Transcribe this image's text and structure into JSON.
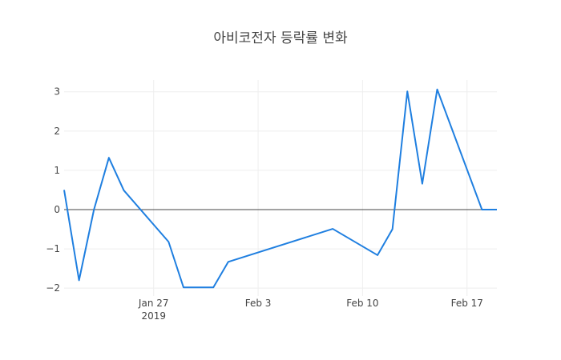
{
  "chart_data": {
    "type": "line",
    "title": "아비코전자 등락률 변화",
    "xlabel": "",
    "ylabel": "",
    "x": [
      "2019-01-21",
      "2019-01-22",
      "2019-01-23",
      "2019-01-24",
      "2019-01-25",
      "2019-01-28",
      "2019-01-29",
      "2019-01-30",
      "2019-01-31",
      "2019-02-01",
      "2019-02-08",
      "2019-02-11",
      "2019-02-12",
      "2019-02-13",
      "2019-02-14",
      "2019-02-15",
      "2019-02-18",
      "2019-02-19"
    ],
    "series": [
      {
        "values": [
          0.5,
          -1.8,
          0.0,
          1.32,
          0.49,
          -0.82,
          -1.98,
          -1.98,
          -1.98,
          -1.33,
          -0.49,
          -1.16,
          -0.5,
          3.01,
          0.66,
          3.06,
          0.0,
          0.0
        ],
        "color": "#1f7fe0"
      }
    ],
    "xlim": [
      "2019-01-21",
      "2019-02-19"
    ],
    "ylim": [
      -2.2,
      3.3
    ],
    "xticks": [
      {
        "date": "2019-01-27",
        "label": "Jan 27",
        "sublabel": "2019"
      },
      {
        "date": "2019-02-03",
        "label": "Feb 3",
        "sublabel": ""
      },
      {
        "date": "2019-02-10",
        "label": "Feb 10",
        "sublabel": ""
      },
      {
        "date": "2019-02-17",
        "label": "Feb 17",
        "sublabel": ""
      }
    ],
    "yticks": [
      {
        "value": 3,
        "label": "3"
      },
      {
        "value": 2,
        "label": "2"
      },
      {
        "value": 1,
        "label": "1"
      },
      {
        "value": 0,
        "label": "0"
      },
      {
        "value": -1,
        "label": "−1"
      },
      {
        "value": -2,
        "label": "−2"
      }
    ],
    "grid": true,
    "zero_line": true,
    "legend": "none"
  }
}
